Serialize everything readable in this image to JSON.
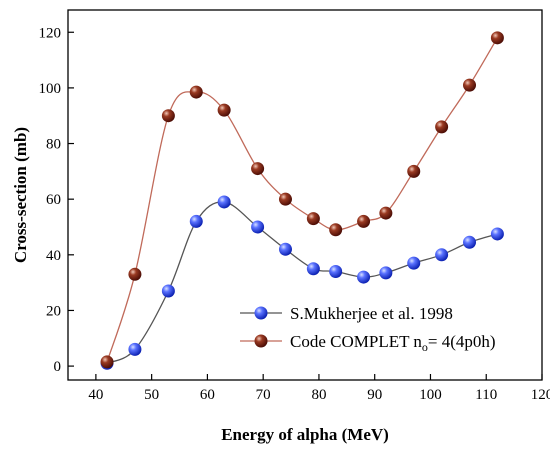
{
  "chart_data": {
    "type": "line",
    "xlabel": "Energy of alpha (MeV)",
    "ylabel": "Cross-section (mb)",
    "xlim": [
      35,
      120
    ],
    "ylim": [
      -5,
      128
    ],
    "xticks": [
      40,
      50,
      60,
      70,
      80,
      90,
      100,
      110,
      120
    ],
    "yticks": [
      0,
      20,
      40,
      60,
      80,
      100,
      120
    ],
    "legend_position": "bottom-right",
    "grid": false,
    "series": [
      {
        "name": "S.Mukherjee et al. 1998",
        "marker": "sphere",
        "color": "#1f3ff0",
        "line_color": "#555555",
        "x": [
          42,
          47,
          53,
          58,
          63,
          69,
          74,
          79,
          83,
          88,
          92,
          97,
          102,
          107,
          112
        ],
        "y": [
          1,
          6,
          27,
          52,
          59,
          50,
          42,
          35,
          34,
          32,
          33.5,
          37,
          40,
          44.5,
          47.5
        ]
      },
      {
        "name": "Code COMPLET n",
        "name_sub": "o",
        "name_suffix": "= 4(4p0h)",
        "marker": "sphere",
        "color": "#7a1e10",
        "line_color": "#c06a5a",
        "x": [
          42,
          47,
          53,
          58,
          63,
          69,
          74,
          79,
          83,
          88,
          92,
          97,
          102,
          107,
          112
        ],
        "y": [
          1.5,
          33,
          90,
          98.5,
          92,
          71,
          60,
          53,
          49,
          52,
          55,
          70,
          86,
          101,
          118
        ]
      }
    ]
  }
}
